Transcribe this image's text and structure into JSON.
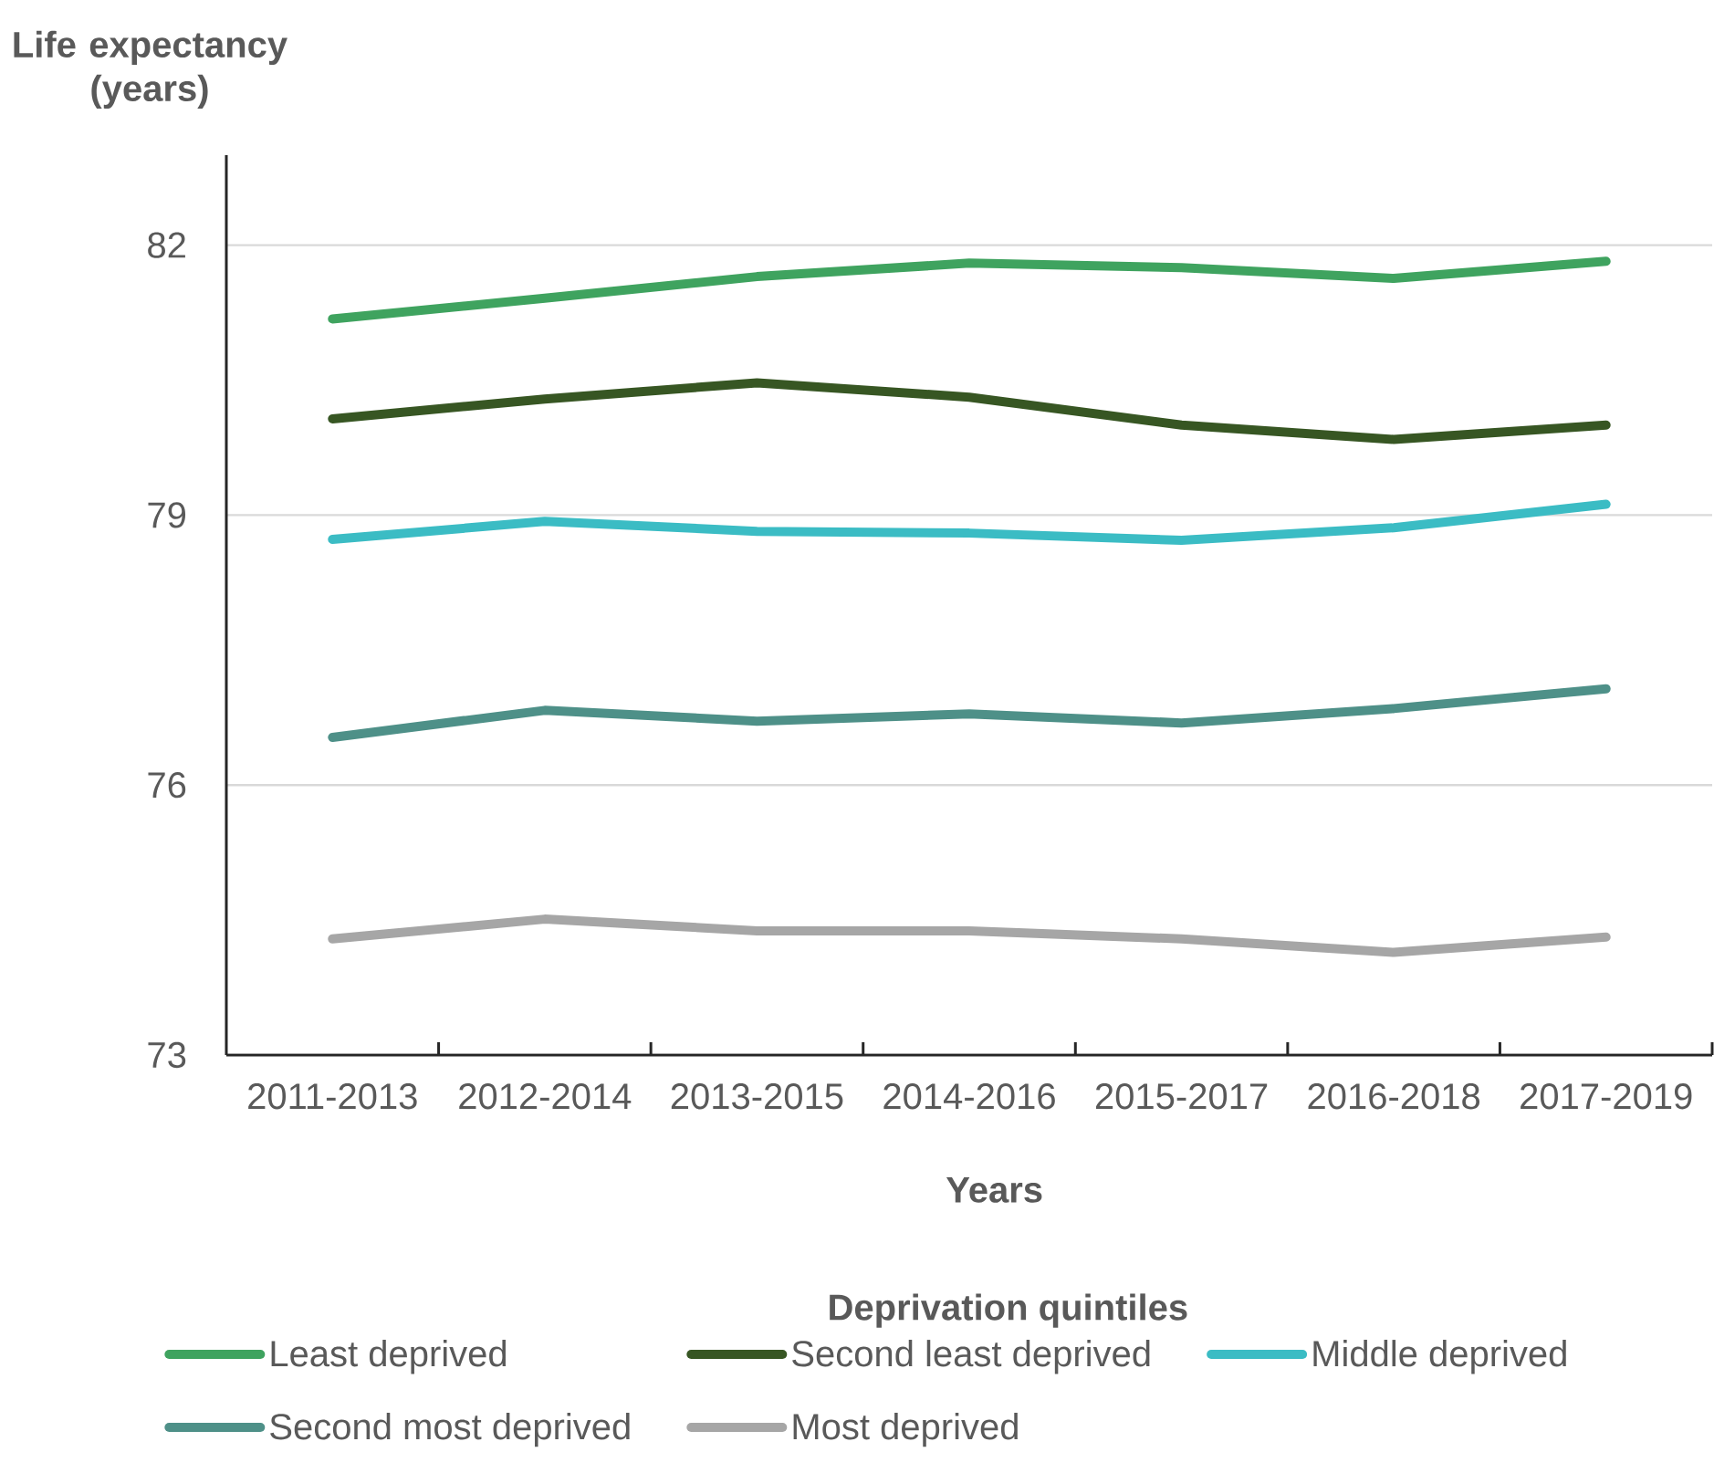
{
  "chart_data": {
    "type": "line",
    "ylabel": "Life expectancy (years)",
    "xlabel": "Years",
    "legend_title": "Deprivation quintiles",
    "categories": [
      "2011-2013",
      "2012-2014",
      "2013-2015",
      "2014-2016",
      "2015-2017",
      "2016-2018",
      "2017-2019"
    ],
    "series": [
      {
        "name": "Least deprived",
        "color": "#3fa35f",
        "values": [
          81.18,
          81.41,
          81.65,
          81.8,
          81.75,
          81.63,
          81.82
        ]
      },
      {
        "name": "Second least deprived",
        "color": "#375623",
        "values": [
          80.07,
          80.29,
          80.47,
          80.31,
          80.0,
          79.84,
          80.0
        ]
      },
      {
        "name": "Middle deprived",
        "color": "#3bbcc4",
        "values": [
          78.73,
          78.93,
          78.82,
          78.8,
          78.72,
          78.86,
          79.12
        ]
      },
      {
        "name": "Second most deprived",
        "color": "#4e9088",
        "values": [
          76.53,
          76.83,
          76.71,
          76.79,
          76.69,
          76.85,
          77.07
        ]
      },
      {
        "name": "Most deprived",
        "color": "#a6a6a6",
        "values": [
          74.29,
          74.51,
          74.38,
          74.38,
          74.29,
          74.14,
          74.31
        ]
      }
    ],
    "ylim": [
      73,
      83
    ],
    "yticks": [
      73,
      76,
      79,
      82
    ],
    "grid": "y",
    "legend": "bottom"
  }
}
